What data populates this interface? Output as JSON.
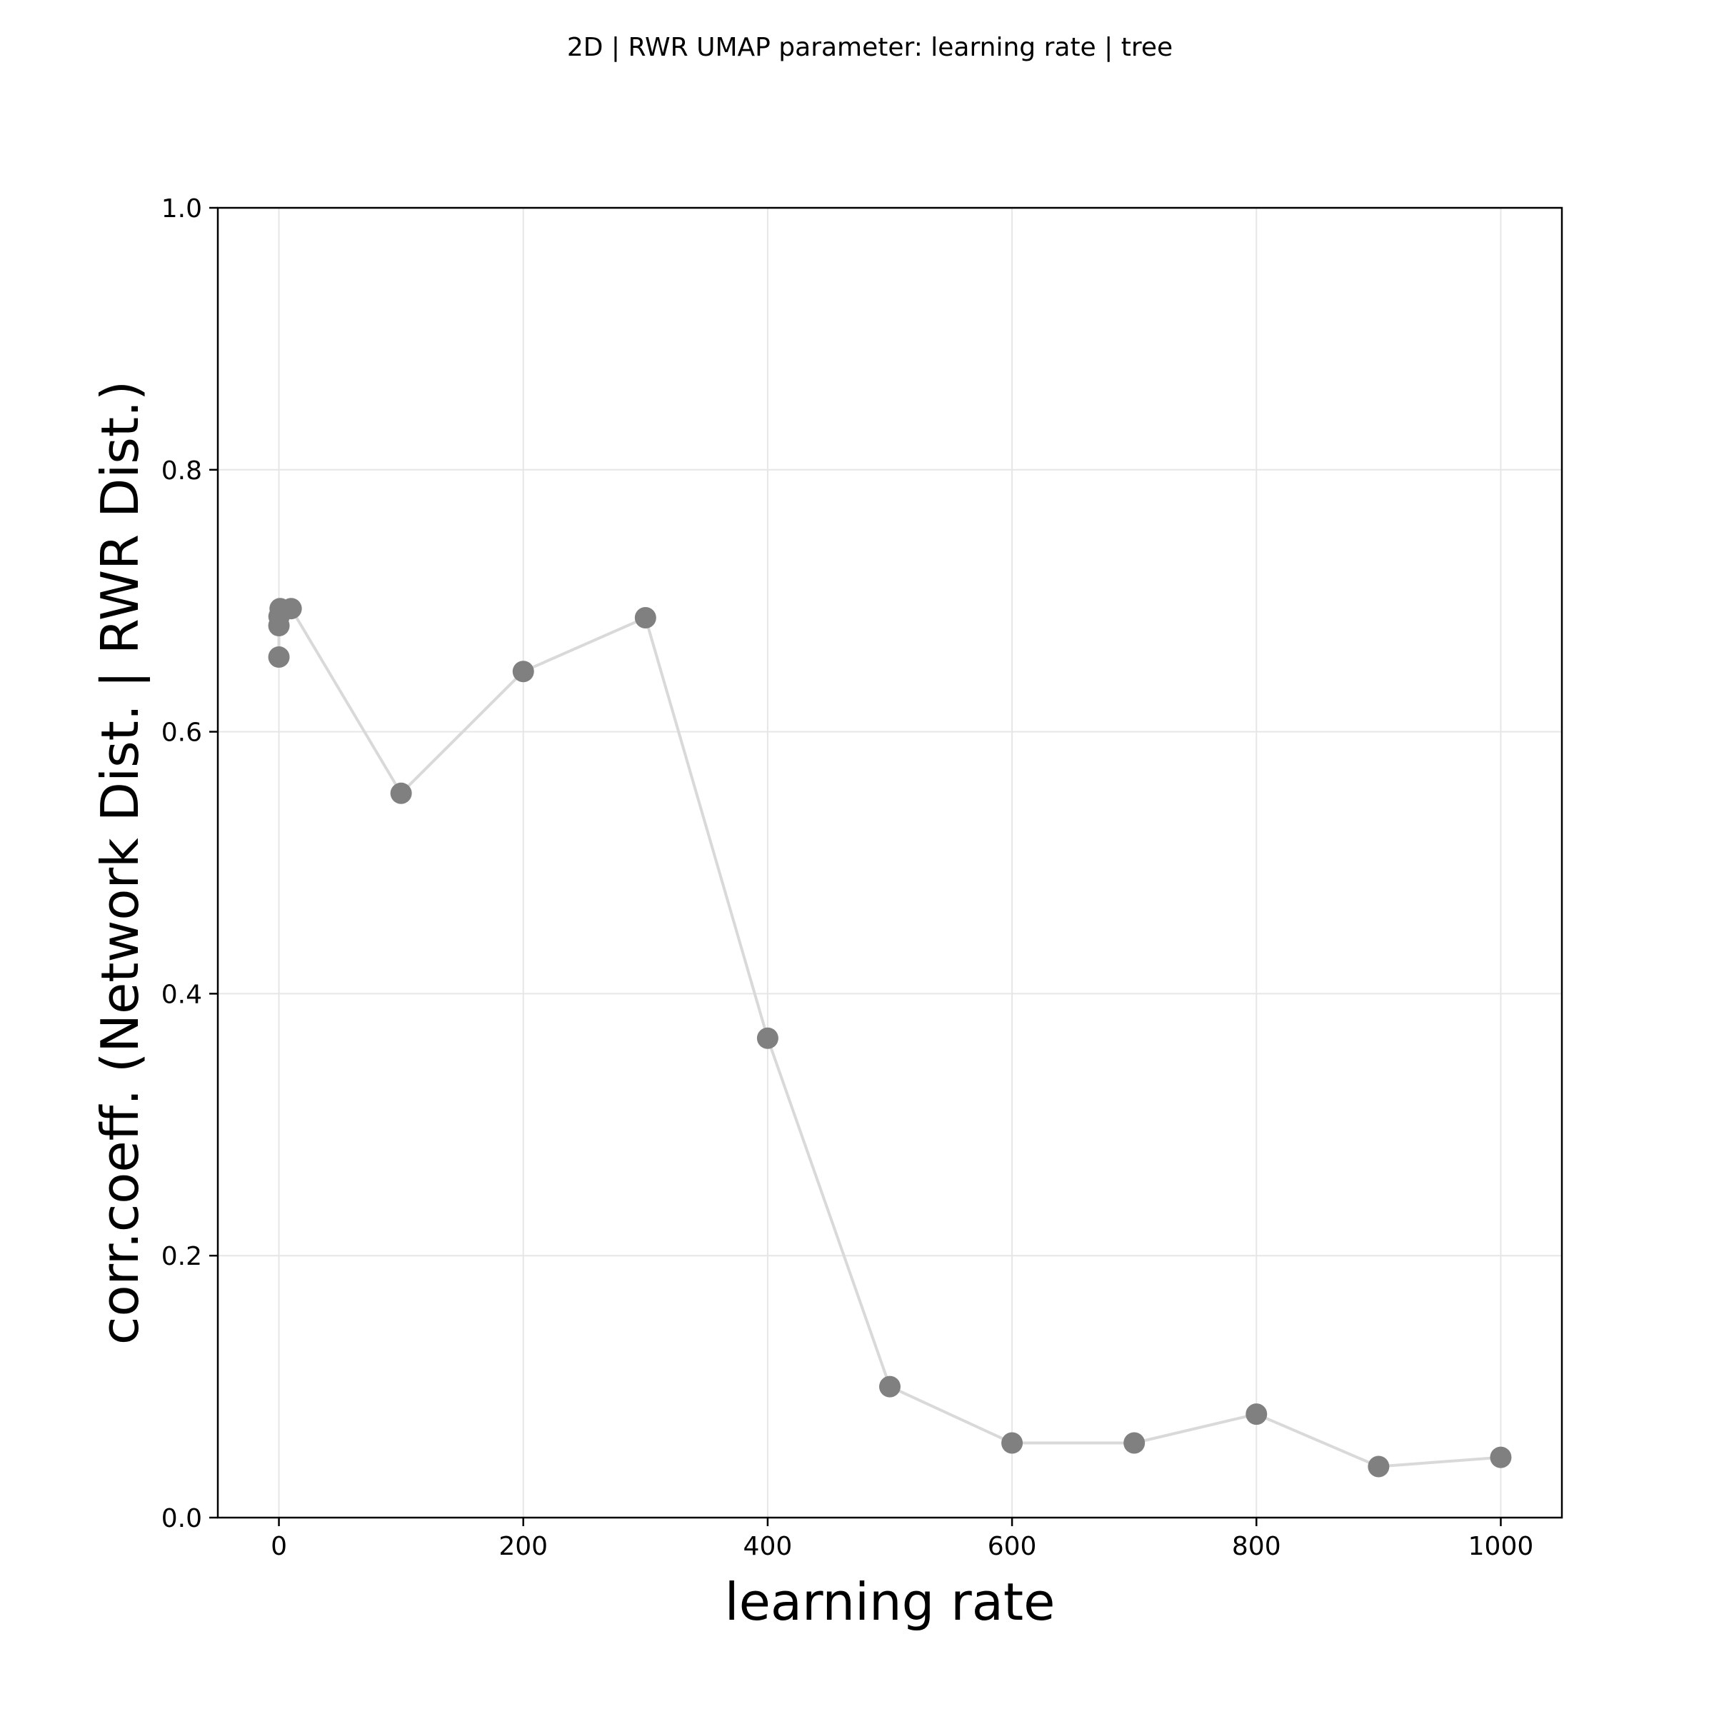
{
  "chart_data": {
    "type": "line",
    "title": "2D | RWR UMAP parameter: learning rate | tree",
    "xlabel": "learning rate",
    "ylabel": "corr.coeff. (Network Dist. | RWR Dist.)",
    "xlim": [
      -50,
      1050
    ],
    "ylim": [
      0.0,
      1.0
    ],
    "xticks": [
      0,
      200,
      400,
      600,
      800,
      1000
    ],
    "xtick_labels": [
      "0",
      "200",
      "400",
      "600",
      "800",
      "1000"
    ],
    "yticks": [
      0.0,
      0.2,
      0.4,
      0.6,
      0.8,
      1.0
    ],
    "ytick_labels": [
      "0.0",
      "0.2",
      "0.4",
      "0.6",
      "0.8",
      "1.0"
    ],
    "grid": true,
    "colors": {
      "line": "#d9d9d9",
      "marker": "#808080",
      "grid": "#e6e6e6",
      "axes": "#000000"
    },
    "series": [
      {
        "x": [
          0.001,
          0.01,
          0.1,
          1,
          10,
          100,
          200,
          300,
          400,
          500,
          600,
          700,
          800,
          900,
          1000
        ],
        "y": [
          0.657,
          0.681,
          0.688,
          0.694,
          0.694,
          0.553,
          0.646,
          0.687,
          0.366,
          0.1,
          0.057,
          0.057,
          0.079,
          0.039,
          0.046
        ]
      }
    ]
  }
}
